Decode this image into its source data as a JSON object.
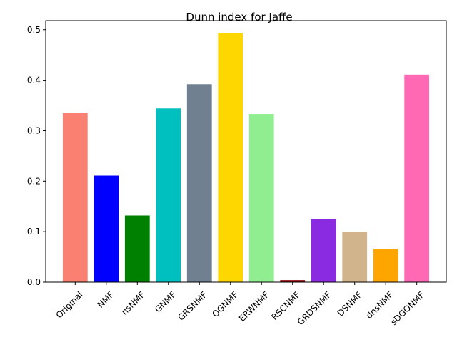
{
  "chart_data": {
    "type": "bar",
    "title": "Dunn index for Jaffe",
    "xlabel": "",
    "ylabel": "",
    "categories": [
      "Original",
      "NMF",
      "nsNMF",
      "GNMF",
      "GRSNMF",
      "OGNMF",
      "ERWNMF",
      "RSCNMF",
      "GRDSNMF",
      "DSNMF",
      "dnsNMF",
      "sDGONMF"
    ],
    "values": [
      0.335,
      0.211,
      0.132,
      0.344,
      0.392,
      0.493,
      0.333,
      0.004,
      0.125,
      0.1,
      0.065,
      0.411
    ],
    "colors": [
      "#fa8072",
      "#0000ff",
      "#008000",
      "#00bfbf",
      "#708090",
      "#ffd700",
      "#90ee90",
      "#8b0000",
      "#8a2be2",
      "#d2b48c",
      "#ffa500",
      "#ff69b4"
    ],
    "ylim": [
      0,
      0.518
    ],
    "yticks": [
      0.0,
      0.1,
      0.2,
      0.3,
      0.4,
      0.5
    ],
    "ytick_labels": [
      "0.0",
      "0.1",
      "0.2",
      "0.3",
      "0.4",
      "0.5"
    ],
    "grid": false,
    "legend": "none"
  }
}
